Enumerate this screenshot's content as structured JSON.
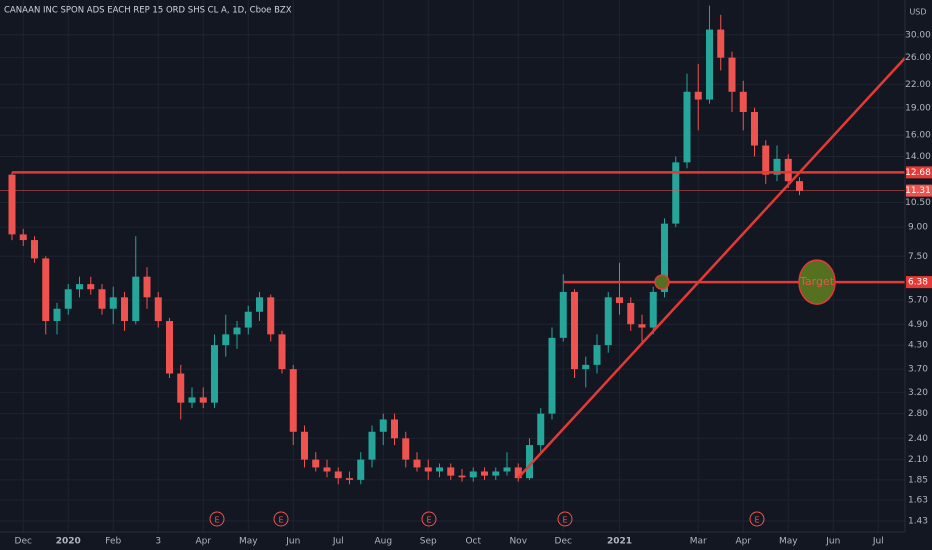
{
  "chart_data": {
    "type": "candlestick",
    "title": "CANAAN INC SPON ADS EACH REP 15 ORD SHS CL A, 1D, Cboe BZX",
    "currency": "USD",
    "log_scale": true,
    "grid": true,
    "up_color": "#26a69a",
    "down_color": "#ef5350",
    "level_color": "#e53935",
    "categories": [
      null,
      "Dec",
      null,
      null,
      null,
      "2020",
      null,
      null,
      null,
      "Feb",
      null,
      null,
      null,
      "3",
      null,
      null,
      null,
      "Apr",
      null,
      null,
      null,
      "May",
      null,
      null,
      null,
      "Jun",
      null,
      null,
      null,
      "Jul",
      null,
      null,
      null,
      "Aug",
      null,
      null,
      null,
      "Sep",
      null,
      null,
      null,
      "Oct",
      null,
      null,
      null,
      "Nov",
      null,
      null,
      null,
      "Dec",
      null,
      null,
      null,
      null,
      "2021",
      null,
      null,
      null,
      null,
      null,
      null,
      "Mar",
      null,
      null,
      null,
      "Apr",
      null,
      null,
      null,
      "May",
      null,
      null,
      null,
      "Jun",
      null,
      null,
      null,
      "Jul",
      null,
      null
    ],
    "open": [
      12.5,
      8.6,
      8.3,
      7.4,
      5.0,
      5.4,
      6.1,
      6.3,
      6.1,
      5.4,
      5.8,
      5.0,
      6.6,
      5.8,
      5.0,
      3.6,
      3.0,
      3.1,
      3.0,
      4.3,
      4.6,
      4.8,
      5.3,
      5.8,
      4.6,
      3.7,
      2.5,
      2.1,
      2.0,
      1.95,
      1.87,
      1.85,
      2.1,
      2.5,
      2.7,
      2.4,
      2.1,
      2.0,
      1.95,
      2.0,
      1.9,
      1.88,
      1.95,
      1.9,
      1.95,
      2.0,
      1.87,
      2.3,
      2.8,
      4.5,
      6.0,
      3.7,
      3.8,
      4.3,
      5.8,
      5.6,
      4.9,
      4.8,
      6.0,
      9.2,
      13.5,
      21.0,
      20.0,
      31.0,
      26.0,
      21.0,
      18.5,
      15.0,
      12.5,
      13.8,
      12.0,
      null,
      null,
      null,
      null,
      null,
      null,
      null,
      null,
      null
    ],
    "high": [
      12.7,
      8.9,
      8.5,
      7.5,
      5.6,
      6.3,
      6.6,
      6.6,
      6.3,
      6.2,
      6.0,
      8.5,
      7.0,
      6.0,
      5.1,
      3.8,
      3.3,
      3.3,
      4.6,
      5.2,
      5.0,
      5.5,
      6.0,
      5.9,
      4.7,
      3.8,
      2.6,
      2.2,
      2.1,
      2.0,
      1.95,
      2.2,
      2.6,
      2.8,
      2.8,
      2.5,
      2.2,
      2.1,
      2.05,
      2.05,
      1.98,
      2.0,
      2.0,
      2.0,
      2.2,
      2.05,
      2.4,
      2.9,
      4.8,
      6.7,
      6.1,
      4.0,
      4.6,
      6.0,
      7.2,
      5.8,
      5.2,
      6.2,
      9.5,
      14.0,
      23.5,
      25.0,
      36.0,
      34.0,
      27.0,
      22.5,
      19.0,
      15.5,
      15.0,
      14.2,
      12.3,
      null,
      null,
      null,
      null,
      null,
      null,
      null,
      null,
      null
    ],
    "low": [
      8.3,
      8.0,
      7.2,
      4.6,
      4.6,
      5.2,
      5.8,
      5.9,
      5.2,
      4.9,
      4.7,
      4.9,
      5.4,
      4.8,
      3.5,
      2.7,
      2.9,
      2.9,
      2.9,
      4.0,
      4.2,
      4.6,
      5.0,
      4.4,
      3.6,
      2.3,
      2.0,
      1.95,
      1.88,
      1.8,
      1.8,
      1.8,
      2.0,
      2.3,
      2.3,
      2.0,
      1.95,
      1.85,
      1.88,
      1.85,
      1.83,
      1.83,
      1.85,
      1.85,
      1.9,
      1.83,
      1.85,
      2.2,
      2.7,
      4.4,
      3.5,
      3.3,
      3.6,
      4.1,
      5.2,
      4.7,
      4.4,
      4.6,
      5.8,
      9.0,
      13.0,
      16.5,
      19.5,
      24.0,
      18.5,
      16.5,
      14.0,
      11.8,
      12.0,
      11.5,
      11.0,
      null,
      null,
      null,
      null,
      null,
      null,
      null,
      null,
      null
    ],
    "close": [
      8.6,
      8.3,
      7.4,
      5.0,
      5.4,
      6.1,
      6.3,
      6.1,
      5.4,
      5.8,
      5.0,
      6.6,
      5.8,
      5.0,
      3.6,
      3.0,
      3.1,
      3.0,
      4.3,
      4.6,
      4.8,
      5.3,
      5.8,
      4.6,
      3.7,
      2.5,
      2.1,
      2.0,
      1.95,
      1.87,
      1.85,
      2.1,
      2.5,
      2.7,
      2.4,
      2.1,
      2.0,
      1.95,
      2.0,
      1.9,
      1.88,
      1.95,
      1.9,
      1.95,
      2.0,
      1.87,
      2.3,
      2.8,
      4.5,
      6.0,
      3.7,
      3.8,
      4.3,
      5.8,
      5.6,
      4.9,
      4.8,
      6.0,
      9.2,
      13.5,
      21.0,
      20.0,
      31.0,
      26.0,
      21.0,
      18.5,
      15.0,
      12.5,
      13.8,
      12.0,
      11.31,
      null,
      null,
      null,
      null,
      null,
      null,
      null,
      null,
      null
    ],
    "ylim": [
      1.335,
      37.3
    ],
    "yticks": [
      1.43,
      1.63,
      1.85,
      {
        "value": 2.1,
        "label": "2.10"
      },
      {
        "value": 2.4,
        "label": "2.40"
      },
      {
        "value": 2.8,
        "label": "2.80"
      },
      {
        "value": 3.2,
        "label": "3.20"
      },
      {
        "value": 3.7,
        "label": "3.70"
      },
      {
        "value": 4.3,
        "label": "4.30"
      },
      {
        "value": 4.9,
        "label": "4.90"
      },
      {
        "value": 5.7,
        "label": "5.70"
      },
      {
        "value": 7.5,
        "label": "7.50"
      },
      {
        "value": 9,
        "label": "9.00"
      },
      {
        "value": 10.5,
        "label": "10.50"
      },
      {
        "value": 14,
        "label": "14.00"
      },
      {
        "value": 16,
        "label": "16.00"
      },
      {
        "value": 19,
        "label": "19.00"
      },
      {
        "value": 22,
        "label": "22.00"
      },
      {
        "value": 26,
        "label": "26.00"
      },
      {
        "value": 30,
        "label": "30.00"
      }
    ],
    "levels": [
      12.68,
      6.38
    ],
    "last_price": 11.31,
    "earnings_label": "E",
    "annotation": "Target"
  }
}
